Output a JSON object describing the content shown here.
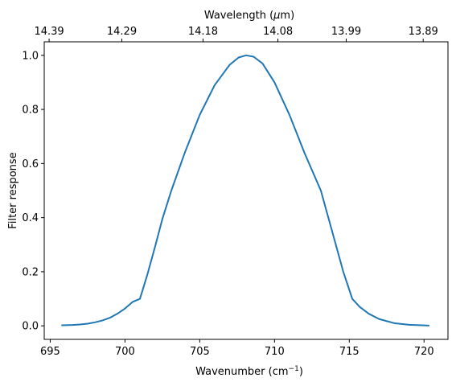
{
  "chart_data": {
    "type": "line",
    "xlabel": {
      "base": "Wavenumber (cm",
      "sup": "−1",
      "close": ")"
    },
    "ylabel": "Filter response",
    "top_xlabel": {
      "before": "Wavelength (",
      "mu": "μ",
      "after": "m)"
    },
    "xlim": [
      694.6,
      721.6
    ],
    "ylim": [
      -0.05,
      1.05
    ],
    "xticks": [
      695,
      700,
      705,
      710,
      715,
      720
    ],
    "xtick_labels": [
      "695",
      "700",
      "705",
      "710",
      "715",
      "720"
    ],
    "yticks": [
      0.0,
      0.2,
      0.4,
      0.6,
      0.8,
      1.0
    ],
    "ytick_labels": [
      "0.0",
      "0.2",
      "0.4",
      "0.6",
      "0.8",
      "1.0"
    ],
    "top_xticks": [
      14.39,
      14.29,
      14.18,
      14.08,
      13.99,
      13.89
    ],
    "top_xtick_labels": [
      "14.39",
      "14.29",
      "14.18",
      "14.08",
      "13.99",
      "13.89"
    ],
    "grid": false,
    "series": [
      {
        "color": "#1f77b4",
        "x": [
          695.8,
          696.5,
          697,
          697.5,
          698,
          698.5,
          699,
          699.5,
          700,
          700.5,
          701.0,
          701.5,
          702.0,
          702.5,
          703.1,
          704.0,
          705.0,
          706.0,
          707.0,
          707.6,
          708.1,
          708.6,
          709.2,
          710.0,
          711.0,
          712.0,
          713.1,
          713.6,
          714.1,
          714.6,
          715.2,
          715.7,
          716.3,
          717.0,
          718.0,
          719.0,
          720.3
        ],
        "y": [
          0.002,
          0.003,
          0.005,
          0.008,
          0.013,
          0.02,
          0.03,
          0.045,
          0.064,
          0.088,
          0.1,
          0.19,
          0.29,
          0.395,
          0.5,
          0.64,
          0.78,
          0.89,
          0.965,
          0.992,
          1.0,
          0.995,
          0.97,
          0.9,
          0.78,
          0.64,
          0.5,
          0.4,
          0.3,
          0.2,
          0.1,
          0.07,
          0.045,
          0.025,
          0.01,
          0.004,
          0.001
        ]
      }
    ]
  }
}
